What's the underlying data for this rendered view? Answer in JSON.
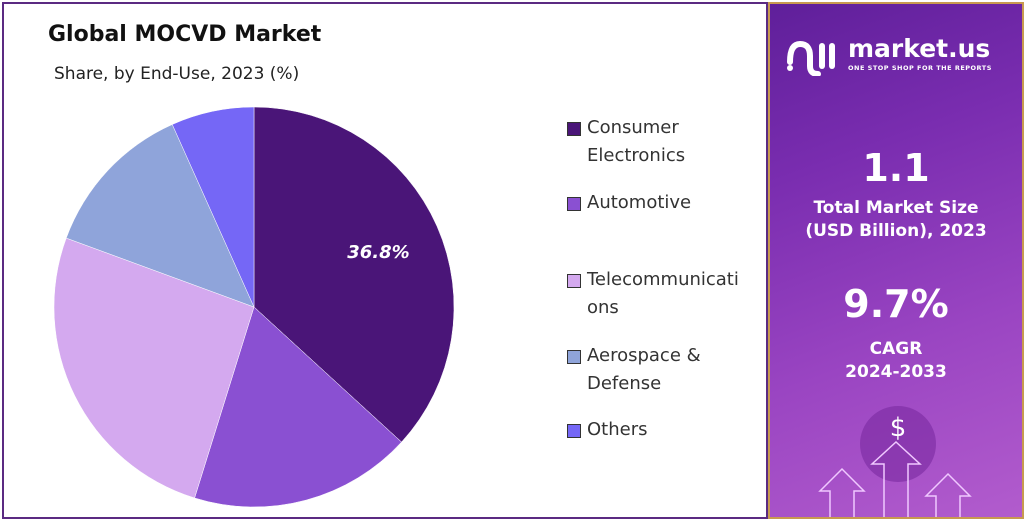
{
  "chart_data": {
    "type": "pie",
    "title": "Global MOCVD Market",
    "subtitle": "Share, by End-Use, 2023 (%)",
    "categories": [
      "Consumer Electronics",
      "Automotive",
      "Telecommunications",
      "Aerospace & Defense",
      "Others"
    ],
    "legend_lines": [
      [
        "Consumer",
        "Electronics"
      ],
      [
        "Automotive"
      ],
      [
        "Telecommunicati",
        "ons"
      ],
      [
        "Aerospace &",
        "Defense"
      ],
      [
        "Others"
      ]
    ],
    "values": [
      36.8,
      18.0,
      25.8,
      12.7,
      6.7
    ],
    "colors": [
      "#4a1578",
      "#8a50d2",
      "#d4a9ef",
      "#8fa4da",
      "#7567f6"
    ],
    "data_labels": [
      "36.8%",
      "",
      "",
      "",
      ""
    ],
    "legend_position": "right"
  },
  "sidebar": {
    "brand": "market.us",
    "tagline": "ONE STOP SHOP FOR THE REPORTS",
    "market_size": "1.1",
    "market_size_label_1": "Total Market Size",
    "market_size_label_2": "(USD Billion), 2023",
    "cagr": "9.7%",
    "cagr_label_1": "CAGR",
    "cagr_label_2": "2024-2033",
    "dollar": "$"
  }
}
